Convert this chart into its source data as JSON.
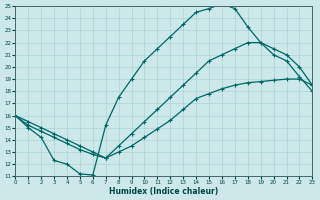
{
  "background_color": "#cce8e8",
  "grid_color": "#aad4d4",
  "line_color": "#006666",
  "xlabel": "Humidex (Indice chaleur)",
  "xlim": [
    0,
    23
  ],
  "ylim": [
    11,
    25
  ],
  "xticks": [
    0,
    1,
    2,
    3,
    4,
    5,
    6,
    7,
    8,
    9,
    10,
    11,
    12,
    13,
    14,
    15,
    16,
    17,
    18,
    19,
    20,
    21,
    22,
    23
  ],
  "yticks": [
    11,
    12,
    13,
    14,
    15,
    16,
    17,
    18,
    19,
    20,
    21,
    22,
    23,
    24,
    25
  ],
  "curve1_x": [
    0,
    1,
    2,
    3,
    4,
    5,
    6,
    7,
    8,
    9,
    10,
    11,
    12,
    13,
    14,
    15,
    16,
    17,
    18,
    19,
    20,
    21,
    22,
    23
  ],
  "curve1_y": [
    16.0,
    15.2,
    14.7,
    14.2,
    13.7,
    13.2,
    12.8,
    12.5,
    13.0,
    13.5,
    14.2,
    14.9,
    15.6,
    16.5,
    17.4,
    17.8,
    18.2,
    18.5,
    18.7,
    18.8,
    18.9,
    19.0,
    19.0,
    18.5
  ],
  "curve2_x": [
    0,
    1,
    2,
    3,
    4,
    5,
    6,
    7,
    8,
    9,
    10,
    11,
    12,
    13,
    14,
    15,
    16,
    17,
    18,
    19,
    20,
    21,
    22,
    23
  ],
  "curve2_y": [
    16.0,
    15.5,
    15.0,
    14.5,
    14.0,
    13.5,
    13.0,
    12.5,
    13.5,
    14.5,
    15.5,
    16.5,
    17.5,
    18.5,
    19.5,
    20.5,
    21.0,
    21.5,
    22.0,
    22.0,
    21.5,
    21.0,
    20.0,
    18.5
  ],
  "curve3_x": [
    0,
    1,
    2,
    3,
    4,
    5,
    6,
    7,
    8,
    9,
    10,
    11,
    12,
    13,
    14,
    15,
    16,
    17,
    18,
    19,
    20,
    21,
    22,
    23
  ],
  "curve3_y": [
    16.0,
    15.0,
    14.2,
    12.3,
    12.0,
    11.2,
    11.1,
    15.2,
    17.5,
    19.0,
    20.5,
    21.5,
    22.5,
    23.5,
    24.5,
    24.8,
    25.2,
    24.8,
    23.3,
    22.0,
    21.0,
    20.5,
    19.2,
    18.0
  ]
}
